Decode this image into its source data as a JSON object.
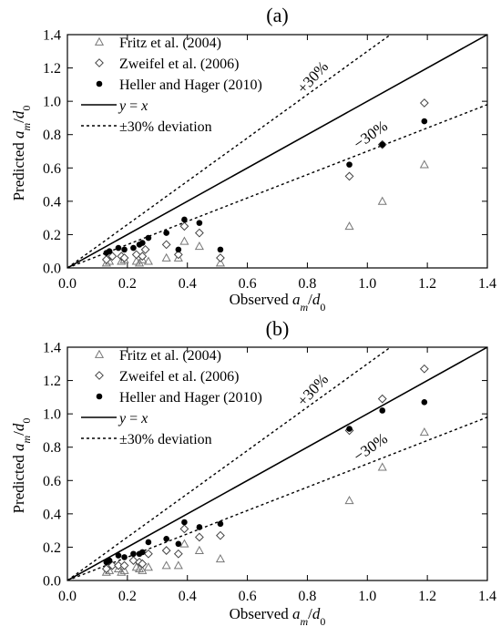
{
  "chart_data": [
    {
      "panel_label": "(a)",
      "type": "scatter",
      "xlabel": "Observed a_m/d_0",
      "ylabel": "Predicted a_m/d_0",
      "xlim": [
        0,
        1.4
      ],
      "ylim": [
        0,
        1.4
      ],
      "xticks": [
        "0.0",
        "0.2",
        "0.4",
        "0.6",
        "0.8",
        "1.0",
        "1.2",
        "1.4"
      ],
      "yticks": [
        "0.0",
        "0.2",
        "0.4",
        "0.6",
        "0.8",
        "1.0",
        "1.2",
        "1.4"
      ],
      "grid": false,
      "legend_position": "top-left",
      "legend": [
        {
          "label": "Fritz et al. (2004)",
          "symbol": "triangle-open"
        },
        {
          "label": "Zweifel et al. (2006)",
          "symbol": "diamond-open"
        },
        {
          "label": "Heller and Hager (2010)",
          "symbol": "circle-filled"
        },
        {
          "label": "y = x",
          "symbol": "solid-line"
        },
        {
          "label": "±30% deviation",
          "symbol": "dotted-line"
        }
      ],
      "annotations": [
        "+30%",
        "−30%"
      ],
      "lines": [
        {
          "name": "y = x",
          "slope": 1.0
        },
        {
          "name": "+30%",
          "slope": 1.3
        },
        {
          "name": "−30%",
          "slope": 0.7
        }
      ],
      "series": [
        {
          "name": "Fritz et al. (2004)",
          "marker": "triangle",
          "points": [
            [
              0.13,
              0.03
            ],
            [
              0.14,
              0.04
            ],
            [
              0.18,
              0.04
            ],
            [
              0.19,
              0.05
            ],
            [
              0.23,
              0.04
            ],
            [
              0.24,
              0.03
            ],
            [
              0.25,
              0.05
            ],
            [
              0.27,
              0.04
            ],
            [
              0.33,
              0.06
            ],
            [
              0.37,
              0.06
            ],
            [
              0.39,
              0.16
            ],
            [
              0.44,
              0.13
            ],
            [
              0.51,
              0.03
            ],
            [
              0.94,
              0.25
            ],
            [
              1.05,
              0.4
            ],
            [
              1.19,
              0.62
            ]
          ]
        },
        {
          "name": "Zweifel et al. (2006)",
          "marker": "diamond",
          "points": [
            [
              0.13,
              0.05
            ],
            [
              0.15,
              0.07
            ],
            [
              0.18,
              0.07
            ],
            [
              0.19,
              0.06
            ],
            [
              0.23,
              0.08
            ],
            [
              0.25,
              0.07
            ],
            [
              0.26,
              0.11
            ],
            [
              0.33,
              0.14
            ],
            [
              0.37,
              0.08
            ],
            [
              0.39,
              0.25
            ],
            [
              0.44,
              0.21
            ],
            [
              0.51,
              0.06
            ],
            [
              0.94,
              0.55
            ],
            [
              1.05,
              0.74
            ],
            [
              1.19,
              0.99
            ]
          ]
        },
        {
          "name": "Heller and Hager (2010)",
          "marker": "circle",
          "points": [
            [
              0.13,
              0.09
            ],
            [
              0.14,
              0.1
            ],
            [
              0.17,
              0.12
            ],
            [
              0.19,
              0.11
            ],
            [
              0.22,
              0.12
            ],
            [
              0.24,
              0.14
            ],
            [
              0.25,
              0.15
            ],
            [
              0.27,
              0.18
            ],
            [
              0.33,
              0.21
            ],
            [
              0.37,
              0.11
            ],
            [
              0.39,
              0.29
            ],
            [
              0.44,
              0.27
            ],
            [
              0.51,
              0.11
            ],
            [
              0.94,
              0.62
            ],
            [
              1.05,
              0.74
            ],
            [
              1.19,
              0.88
            ]
          ]
        }
      ]
    },
    {
      "panel_label": "(b)",
      "type": "scatter",
      "xlabel": "Observed a_m/d_0",
      "ylabel": "Predicted a_m/d_0",
      "xlim": [
        0,
        1.4
      ],
      "ylim": [
        0,
        1.4
      ],
      "xticks": [
        "0.0",
        "0.2",
        "0.4",
        "0.6",
        "0.8",
        "1.0",
        "1.2",
        "1.4"
      ],
      "yticks": [
        "0.0",
        "0.2",
        "0.4",
        "0.6",
        "0.8",
        "1.0",
        "1.2",
        "1.4"
      ],
      "grid": false,
      "legend_position": "top-left",
      "legend": [
        {
          "label": "Fritz et al. (2004)",
          "symbol": "triangle-open"
        },
        {
          "label": "Zweifel et al. (2006)",
          "symbol": "diamond-open"
        },
        {
          "label": "Heller and Hager (2010)",
          "symbol": "circle-filled"
        },
        {
          "label": "y = x",
          "symbol": "solid-line"
        },
        {
          "label": "±30% deviation",
          "symbol": "dotted-line"
        }
      ],
      "annotations": [
        "+30%",
        "−30%"
      ],
      "lines": [
        {
          "name": "y = x",
          "slope": 1.0
        },
        {
          "name": "+30%",
          "slope": 1.3
        },
        {
          "name": "−30%",
          "slope": 0.7
        }
      ],
      "series": [
        {
          "name": "Fritz et al. (2004)",
          "marker": "triangle",
          "points": [
            [
              0.13,
              0.05
            ],
            [
              0.14,
              0.06
            ],
            [
              0.17,
              0.07
            ],
            [
              0.18,
              0.05
            ],
            [
              0.19,
              0.06
            ],
            [
              0.23,
              0.08
            ],
            [
              0.24,
              0.07
            ],
            [
              0.25,
              0.06
            ],
            [
              0.27,
              0.08
            ],
            [
              0.33,
              0.09
            ],
            [
              0.37,
              0.09
            ],
            [
              0.39,
              0.22
            ],
            [
              0.44,
              0.18
            ],
            [
              0.51,
              0.13
            ],
            [
              0.94,
              0.48
            ],
            [
              1.05,
              0.68
            ],
            [
              1.19,
              0.89
            ]
          ]
        },
        {
          "name": "Zweifel et al. (2006)",
          "marker": "diamond",
          "points": [
            [
              0.13,
              0.07
            ],
            [
              0.15,
              0.09
            ],
            [
              0.17,
              0.09
            ],
            [
              0.19,
              0.09
            ],
            [
              0.22,
              0.12
            ],
            [
              0.24,
              0.11
            ],
            [
              0.25,
              0.1
            ],
            [
              0.27,
              0.16
            ],
            [
              0.33,
              0.18
            ],
            [
              0.37,
              0.16
            ],
            [
              0.39,
              0.31
            ],
            [
              0.44,
              0.26
            ],
            [
              0.51,
              0.27
            ],
            [
              0.94,
              0.9
            ],
            [
              1.05,
              1.09
            ],
            [
              1.19,
              1.27
            ]
          ]
        },
        {
          "name": "Heller and Hager (2010)",
          "marker": "circle",
          "points": [
            [
              0.13,
              0.11
            ],
            [
              0.14,
              0.12
            ],
            [
              0.17,
              0.15
            ],
            [
              0.19,
              0.14
            ],
            [
              0.22,
              0.16
            ],
            [
              0.24,
              0.16
            ],
            [
              0.25,
              0.17
            ],
            [
              0.27,
              0.23
            ],
            [
              0.33,
              0.25
            ],
            [
              0.37,
              0.22
            ],
            [
              0.39,
              0.35
            ],
            [
              0.44,
              0.32
            ],
            [
              0.51,
              0.34
            ],
            [
              0.94,
              0.91
            ],
            [
              1.05,
              1.02
            ],
            [
              1.19,
              1.07
            ]
          ]
        }
      ]
    }
  ]
}
